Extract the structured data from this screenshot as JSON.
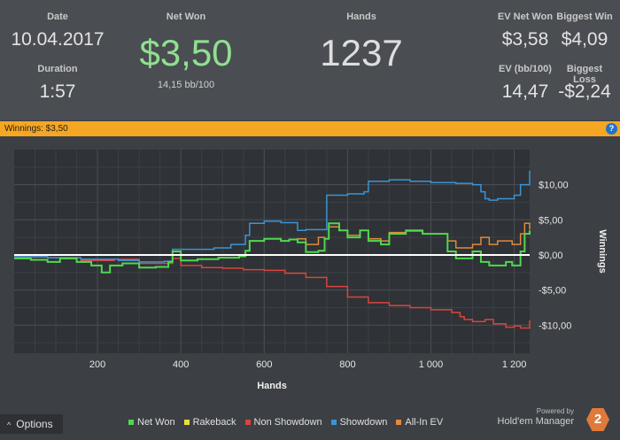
{
  "stats": {
    "date_label": "Date",
    "date_value": "10.04.2017",
    "duration_label": "Duration",
    "duration_value": "1:57",
    "net_won_label": "Net Won",
    "net_won_value": "$3,50",
    "bb_per_100": "14,15 bb/100",
    "hands_label": "Hands",
    "hands_value": "1237",
    "ev_net_won_label": "EV Net Won",
    "ev_net_won_value": "$3,58",
    "biggest_win_label": "Biggest Win",
    "biggest_win_value": "$4,09",
    "ev_bb_label": "EV (bb/100)",
    "ev_bb_value": "14,47",
    "biggest_loss_label": "Biggest Loss",
    "biggest_loss_value": "-$2,24"
  },
  "winnings_bar": {
    "text": "Winnings: $3,50",
    "help_icon": "?"
  },
  "bottom": {
    "options_label": "Options",
    "options_icon": "^",
    "brand_powered": "Powered by",
    "brand_name": "Hold'em Manager",
    "brand_logo": "2"
  },
  "colors": {
    "net_won": "#4fd84f",
    "rakeback": "#e8e03a",
    "non_showdown": "#d9443f",
    "showdown": "#3a94d6",
    "all_in_ev": "#e28a3a",
    "winbar": "#f5a623"
  },
  "chart_data": {
    "type": "line",
    "xlabel": "Hands",
    "ylabel": "Winnings",
    "xlim": [
      0,
      1237
    ],
    "ylim": [
      -14,
      15
    ],
    "x_ticks": [
      200,
      400,
      600,
      800,
      1000,
      1200
    ],
    "x_tick_labels": [
      "200",
      "400",
      "600",
      "800",
      "1 000",
      "1 200"
    ],
    "y_ticks": [
      10,
      5,
      0,
      -5,
      -10
    ],
    "y_tick_labels": [
      "$10,00",
      "$5,00",
      "$0,00",
      "-$5,00",
      "-$10,00"
    ],
    "legend": [
      "Net Won",
      "Rakeback",
      "Non Showdown",
      "Showdown",
      "All-In EV"
    ],
    "legend_position": "bottom",
    "grid": true,
    "series": [
      {
        "name": "Net Won",
        "color": "#4fd84f",
        "points": [
          [
            0,
            -0.5
          ],
          [
            40,
            -0.7
          ],
          [
            80,
            -1.0
          ],
          [
            110,
            -0.5
          ],
          [
            150,
            -1.0
          ],
          [
            185,
            -1.5
          ],
          [
            210,
            -2.5
          ],
          [
            230,
            -1.5
          ],
          [
            260,
            -1.2
          ],
          [
            300,
            -1.8
          ],
          [
            340,
            -1.7
          ],
          [
            370,
            -1.0
          ],
          [
            380,
            0.5
          ],
          [
            400,
            -0.8
          ],
          [
            440,
            -0.6
          ],
          [
            490,
            -0.4
          ],
          [
            540,
            -0.2
          ],
          [
            555,
            0.6
          ],
          [
            565,
            2.0
          ],
          [
            600,
            2.3
          ],
          [
            640,
            2.0
          ],
          [
            660,
            2.2
          ],
          [
            680,
            1.8
          ],
          [
            700,
            0.4
          ],
          [
            730,
            0.6
          ],
          [
            745,
            2.3
          ],
          [
            755,
            4.5
          ],
          [
            780,
            3.5
          ],
          [
            800,
            2.5
          ],
          [
            830,
            3.5
          ],
          [
            850,
            2.0
          ],
          [
            880,
            1.5
          ],
          [
            900,
            3.0
          ],
          [
            940,
            3.5
          ],
          [
            980,
            3.0
          ],
          [
            1020,
            3.0
          ],
          [
            1040,
            0.5
          ],
          [
            1060,
            -0.5
          ],
          [
            1080,
            -0.5
          ],
          [
            1100,
            0.5
          ],
          [
            1120,
            -1.0
          ],
          [
            1140,
            -1.5
          ],
          [
            1160,
            -1.5
          ],
          [
            1180,
            -1.0
          ],
          [
            1195,
            -1.5
          ],
          [
            1205,
            -1.5
          ],
          [
            1215,
            0.5
          ],
          [
            1225,
            3.0
          ],
          [
            1237,
            3.5
          ]
        ]
      },
      {
        "name": "Rakeback",
        "color": "#e8e03a",
        "points": [
          [
            0,
            0
          ],
          [
            1237,
            0
          ]
        ]
      },
      {
        "name": "Non Showdown",
        "color": "#d9443f",
        "points": [
          [
            0,
            -0.3
          ],
          [
            80,
            -0.4
          ],
          [
            160,
            -0.8
          ],
          [
            240,
            -0.6
          ],
          [
            300,
            -1.2
          ],
          [
            360,
            -1.2
          ],
          [
            380,
            -0.5
          ],
          [
            400,
            -1.5
          ],
          [
            450,
            -1.8
          ],
          [
            500,
            -1.9
          ],
          [
            550,
            -2.1
          ],
          [
            600,
            -2.2
          ],
          [
            650,
            -2.6
          ],
          [
            700,
            -3.2
          ],
          [
            750,
            -4.5
          ],
          [
            800,
            -6.0
          ],
          [
            850,
            -6.8
          ],
          [
            900,
            -7.2
          ],
          [
            950,
            -7.5
          ],
          [
            1000,
            -7.8
          ],
          [
            1050,
            -8.2
          ],
          [
            1070,
            -8.8
          ],
          [
            1080,
            -9.2
          ],
          [
            1100,
            -9.5
          ],
          [
            1130,
            -9.2
          ],
          [
            1150,
            -9.8
          ],
          [
            1180,
            -10.3
          ],
          [
            1200,
            -10.1
          ],
          [
            1215,
            -10.4
          ],
          [
            1237,
            -9.3
          ]
        ]
      },
      {
        "name": "Showdown",
        "color": "#3a94d6",
        "points": [
          [
            0,
            -0.2
          ],
          [
            80,
            -0.4
          ],
          [
            160,
            -0.6
          ],
          [
            200,
            -0.6
          ],
          [
            250,
            -0.8
          ],
          [
            300,
            -1.0
          ],
          [
            360,
            -0.9
          ],
          [
            380,
            0.8
          ],
          [
            440,
            0.8
          ],
          [
            480,
            1.0
          ],
          [
            520,
            1.5
          ],
          [
            555,
            2.8
          ],
          [
            565,
            4.5
          ],
          [
            600,
            4.8
          ],
          [
            640,
            4.6
          ],
          [
            680,
            3.5
          ],
          [
            700,
            3.6
          ],
          [
            740,
            3.6
          ],
          [
            750,
            8.5
          ],
          [
            800,
            8.7
          ],
          [
            840,
            9.0
          ],
          [
            850,
            10.5
          ],
          [
            900,
            10.7
          ],
          [
            950,
            10.5
          ],
          [
            1000,
            10.3
          ],
          [
            1060,
            10.2
          ],
          [
            1100,
            10.0
          ],
          [
            1120,
            9.0
          ],
          [
            1130,
            8.0
          ],
          [
            1140,
            7.8
          ],
          [
            1160,
            8.0
          ],
          [
            1180,
            8.0
          ],
          [
            1200,
            8.5
          ],
          [
            1215,
            10.0
          ],
          [
            1237,
            12.0
          ]
        ]
      },
      {
        "name": "All-In EV",
        "color": "#e28a3a",
        "points": [
          [
            0,
            -0.5
          ],
          [
            40,
            -0.7
          ],
          [
            80,
            -1.0
          ],
          [
            110,
            -0.5
          ],
          [
            150,
            -1.0
          ],
          [
            185,
            -1.5
          ],
          [
            210,
            -2.5
          ],
          [
            230,
            -1.5
          ],
          [
            260,
            -1.2
          ],
          [
            300,
            -1.8
          ],
          [
            340,
            -1.7
          ],
          [
            370,
            -1.0
          ],
          [
            380,
            0.5
          ],
          [
            400,
            -0.8
          ],
          [
            440,
            -0.6
          ],
          [
            490,
            -0.4
          ],
          [
            540,
            -0.2
          ],
          [
            555,
            0.6
          ],
          [
            565,
            2.0
          ],
          [
            600,
            2.3
          ],
          [
            640,
            2.0
          ],
          [
            660,
            2.2
          ],
          [
            680,
            2.3
          ],
          [
            700,
            1.5
          ],
          [
            730,
            2.5
          ],
          [
            745,
            2.3
          ],
          [
            755,
            4.0
          ],
          [
            780,
            3.5
          ],
          [
            800,
            2.8
          ],
          [
            830,
            3.5
          ],
          [
            850,
            2.3
          ],
          [
            880,
            2.0
          ],
          [
            900,
            3.2
          ],
          [
            940,
            3.4
          ],
          [
            980,
            3.0
          ],
          [
            1020,
            3.0
          ],
          [
            1040,
            2.0
          ],
          [
            1060,
            1.0
          ],
          [
            1080,
            1.0
          ],
          [
            1100,
            1.5
          ],
          [
            1120,
            2.5
          ],
          [
            1140,
            1.5
          ],
          [
            1160,
            2.0
          ],
          [
            1180,
            2.0
          ],
          [
            1195,
            1.5
          ],
          [
            1205,
            1.5
          ],
          [
            1215,
            3.0
          ],
          [
            1225,
            4.5
          ],
          [
            1237,
            3.6
          ]
        ]
      }
    ]
  }
}
